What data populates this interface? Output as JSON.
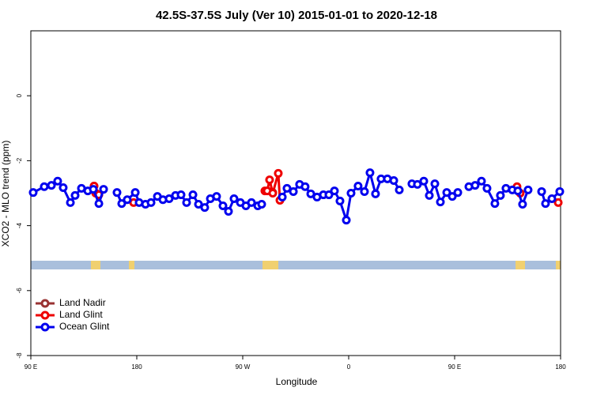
{
  "chart_data": {
    "type": "line",
    "title": "42.5S-37.5S July (Ver 10)   2015-01-01 to 2020-12-18",
    "x_label": "Longitude",
    "y_label": "XCO2 - MLO trend (ppm)",
    "xlim": [
      90,
      540
    ],
    "ylim": [
      -8,
      2
    ],
    "xticks": [
      {
        "value": 90,
        "label": "90 E"
      },
      180,
      {
        "value": 270,
        "label": "90 W"
      },
      {
        "value": 360,
        "label": "0"
      },
      {
        "value": 450,
        "label": "90 E"
      },
      {
        "value": 540,
        "label": "180"
      }
    ],
    "yticks": [
      -8,
      -6,
      -4,
      -2,
      0
    ],
    "legend": "bottomleft",
    "series": [
      {
        "name": "Land Nadir",
        "color": "#993333",
        "x": [
          143.7,
          null,
          295.5
        ],
        "values": [
          -2.78,
          null,
          -2.98
        ]
      },
      {
        "name": "Land Glint",
        "color": "#ee0000",
        "x": [
          143.7,
          145.1,
          147.8,
          null,
          177.3,
          null,
          288.8,
          290.8,
          292.8,
          295.5,
          300.2,
          301.6,
          null,
          503.0,
          505.7,
          null,
          538.0
        ],
        "values": [
          -2.78,
          -3.0,
          -3.05,
          null,
          -3.29,
          null,
          -2.93,
          -2.93,
          -2.59,
          -3.0,
          -2.39,
          -3.22,
          null,
          -2.8,
          -3.0,
          null,
          -3.29
        ]
      },
      {
        "name": "Ocean Glint",
        "color": "#0000ee",
        "x": [
          92.0,
          101.4,
          107.5,
          112.8,
          117.5,
          123.6,
          127.6,
          133.0,
          138.4,
          143.1,
          147.8,
          151.8,
          null,
          163.2,
          167.2,
          171.9,
          178.7,
          182.0,
          187.4,
          192.1,
          197.5,
          202.2,
          207.5,
          212.9,
          217.6,
          222.3,
          227.7,
          232.4,
          237.7,
          242.5,
          247.8,
          253.2,
          257.9,
          262.6,
          268.0,
          272.7,
          277.4,
          282.8,
          286.1,
          null,
          303.6,
          307.6,
          313.0,
          318.3,
          323.0,
          327.8,
          333.1,
          338.5,
          343.2,
          347.9,
          352.6,
          358.0,
          362.0,
          368.0,
          373.4,
          378.1,
          382.8,
          387.5,
          392.9,
          398.3,
          403.0,
          null,
          413.7,
          418.4,
          423.8,
          428.5,
          433.2,
          437.9,
          443.3,
          448.0,
          452.7,
          null,
          462.1,
          467.4,
          472.8,
          477.5,
          484.2,
          488.9,
          493.6,
          499.0,
          503.7,
          507.7,
          512.4,
          null,
          523.9,
          527.2,
          532.6,
          539.3
        ],
        "values": [
          -2.98,
          -2.8,
          -2.76,
          -2.63,
          -2.83,
          -3.29,
          -3.07,
          -2.85,
          -2.93,
          -2.88,
          -3.32,
          -2.88,
          null,
          -2.98,
          -3.32,
          -3.2,
          -2.98,
          -3.29,
          -3.34,
          -3.29,
          -3.1,
          -3.2,
          -3.17,
          -3.07,
          -3.05,
          -3.29,
          -3.05,
          -3.34,
          -3.44,
          -3.17,
          -3.1,
          -3.39,
          -3.56,
          -3.17,
          -3.29,
          -3.39,
          -3.29,
          -3.39,
          -3.34,
          null,
          -3.12,
          -2.85,
          -2.95,
          -2.73,
          -2.8,
          -3.02,
          -3.12,
          -3.05,
          -3.05,
          -2.93,
          -3.24,
          -3.83,
          -3.0,
          -2.78,
          -2.95,
          -2.37,
          -3.02,
          -2.56,
          -2.56,
          -2.61,
          -2.9,
          null,
          -2.71,
          -2.73,
          -2.63,
          -3.07,
          -2.71,
          -3.27,
          -2.98,
          -3.1,
          -2.98,
          null,
          -2.8,
          -2.76,
          -2.63,
          -2.85,
          -3.32,
          -3.07,
          -2.85,
          -2.9,
          -2.93,
          -3.34,
          -2.9,
          null,
          -2.95,
          -3.32,
          -3.17,
          -2.95
        ]
      }
    ]
  }
}
